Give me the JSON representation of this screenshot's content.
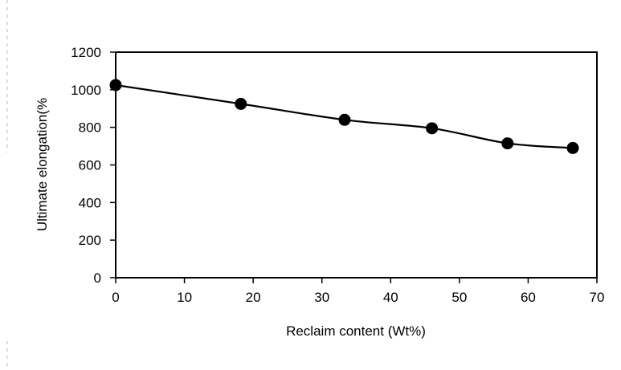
{
  "chart_data": {
    "type": "line",
    "title": "",
    "xlabel": "Reclaim content  (Wt%)",
    "ylabel": "Ultimate elongation(%",
    "xlim": [
      0,
      70
    ],
    "ylim": [
      0,
      1200
    ],
    "xticks": [
      0,
      10,
      20,
      30,
      40,
      50,
      60,
      70
    ],
    "yticks": [
      0,
      200,
      400,
      600,
      800,
      1000,
      1200
    ],
    "grid": false,
    "legend": "none",
    "series": [
      {
        "x": [
          0,
          18.2,
          33.3,
          46,
          57,
          66.5
        ],
        "y": [
          1025,
          925,
          840,
          795,
          715,
          690
        ],
        "marker": "circle",
        "color": "#000000"
      }
    ]
  }
}
